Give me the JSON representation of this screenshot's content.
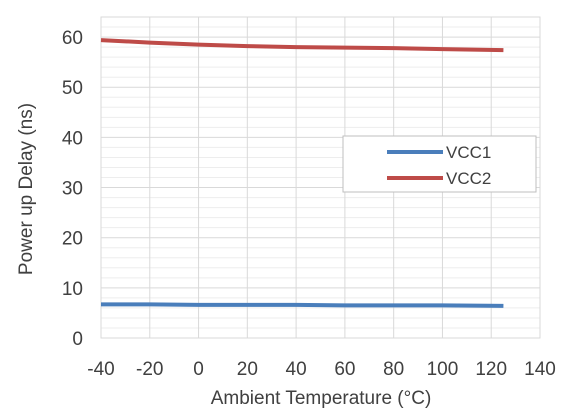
{
  "chart_data": {
    "type": "line",
    "title": "",
    "xlabel": "Ambient Temperature (°C)",
    "ylabel": "Power up Delay (ns)",
    "xlim": [
      -40,
      140
    ],
    "ylim": [
      0,
      64
    ],
    "x_ticks": [
      -40,
      -20,
      0,
      20,
      40,
      60,
      80,
      100,
      120,
      140
    ],
    "y_ticks": [
      0,
      10,
      20,
      30,
      40,
      50,
      60
    ],
    "y_minor_step": 2,
    "grid": true,
    "legend_position": "right",
    "series": [
      {
        "name": "VCC1",
        "color": "#4a7ebb",
        "x": [
          -40,
          -20,
          0,
          20,
          40,
          60,
          80,
          100,
          125
        ],
        "values": [
          6.7,
          6.7,
          6.6,
          6.6,
          6.6,
          6.5,
          6.5,
          6.5,
          6.4
        ]
      },
      {
        "name": "VCC2",
        "color": "#be4b48",
        "x": [
          -40,
          -20,
          0,
          20,
          40,
          60,
          80,
          100,
          125
        ],
        "values": [
          59.4,
          58.9,
          58.5,
          58.2,
          58.0,
          57.9,
          57.8,
          57.6,
          57.4
        ]
      }
    ]
  }
}
